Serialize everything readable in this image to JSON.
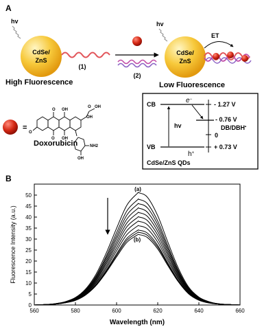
{
  "panel_a": {
    "label": "A",
    "left_qd": {
      "hv": "hv",
      "name_line1": "CdSe/",
      "name_line2": "ZnS",
      "strand_number": "(1)",
      "caption": "High Fluorescence"
    },
    "step2_number": "(2)",
    "right_qd": {
      "hv": "hv",
      "name_line1": "CdSe/",
      "name_line2": "ZnS",
      "et": "ET",
      "caption": "Low Fluorescence"
    },
    "legend": {
      "equals": "=",
      "compound": "Doxorubicin"
    },
    "structure_labels": [
      "O",
      "OH",
      "OH",
      "O",
      "OH",
      "O",
      "OH",
      "OH",
      "NH2",
      "O"
    ],
    "energy": {
      "cb": "CB",
      "vb": "VB",
      "electron": "e",
      "hole": "h",
      "hv": "hv",
      "cb_potential": "- 1.27 V",
      "db_potential": "- 0.76 V",
      "db_label": "DB/DBH",
      "zero": "0",
      "vb_potential": "+ 0.73 V",
      "box_label": "CdSe/ZnS QDs"
    }
  },
  "panel_b": {
    "label": "B",
    "curve_a_label": "(a)",
    "curve_b_label": "(b)"
  },
  "chart_data": {
    "type": "line",
    "xlabel": "Wavelength (nm)",
    "ylabel": "Fluorescence Intensity (a.u.)",
    "xlim": [
      560,
      660
    ],
    "ylim": [
      0,
      55
    ],
    "xticks": [
      560,
      580,
      600,
      620,
      640,
      660
    ],
    "yticks": [
      0,
      5,
      10,
      15,
      20,
      25,
      30,
      35,
      40,
      45,
      50
    ],
    "peak_wavelength": 611,
    "x": [
      560,
      565,
      570,
      575,
      580,
      585,
      590,
      595,
      600,
      605,
      610,
      611,
      615,
      620,
      625,
      630,
      635,
      640,
      645,
      650,
      655,
      660
    ],
    "series": [
      {
        "values": [
          0,
          0.2,
          0.6,
          1.5,
          3.4,
          7.3,
          14,
          23.7,
          34.9,
          45.4,
          50.7,
          51,
          49,
          40.6,
          28.4,
          16.8,
          8.2,
          3.6,
          1.5,
          0.5,
          0.2,
          0
        ]
      },
      {
        "values": [
          0,
          0.2,
          0.6,
          1.4,
          3.2,
          6.9,
          13.2,
          22.3,
          32.9,
          42.8,
          47.7,
          48,
          46.1,
          38.2,
          26.7,
          15.8,
          7.7,
          3.4,
          1.4,
          0.5,
          0.2,
          0
        ]
      },
      {
        "values": [
          0,
          0.2,
          0.5,
          1.4,
          3.1,
          6.6,
          12.6,
          21.4,
          31.4,
          40.9,
          45.7,
          46,
          44.2,
          36.6,
          25.6,
          15.2,
          7.4,
          3.3,
          1.3,
          0.5,
          0.2,
          0
        ]
      },
      {
        "values": [
          0,
          0.2,
          0.5,
          1.3,
          2.9,
          6.3,
          12.1,
          20.4,
          30.1,
          39.1,
          43.7,
          44,
          42.2,
          35,
          24.5,
          14.5,
          7.1,
          3.1,
          1.3,
          0.4,
          0.2,
          0
        ]
      },
      {
        "values": [
          0,
          0.2,
          0.5,
          1.3,
          2.8,
          6,
          11.5,
          19.5,
          28.7,
          37.3,
          41.7,
          42,
          40.3,
          33.4,
          23.4,
          13.8,
          6.8,
          3,
          1.2,
          0.4,
          0.2,
          0
        ]
      },
      {
        "values": [
          0,
          0.2,
          0.5,
          1.2,
          2.7,
          5.7,
          11,
          18.6,
          27.4,
          35.6,
          39.7,
          40,
          38.4,
          31.8,
          22.3,
          13.2,
          6.4,
          2.8,
          1.2,
          0.4,
          0.2,
          0
        ]
      },
      {
        "values": [
          0,
          0.2,
          0.5,
          1.1,
          2.5,
          5.4,
          10.4,
          17.6,
          26,
          33.8,
          37.8,
          38,
          36.5,
          30.2,
          21.1,
          12.5,
          6.1,
          2.7,
          1.1,
          0.4,
          0.2,
          0
        ]
      },
      {
        "values": [
          0,
          0.2,
          0.4,
          1.1,
          2.4,
          5.2,
          9.9,
          16.7,
          24.7,
          32,
          35.8,
          36,
          34.6,
          28.6,
          20,
          11.9,
          5.8,
          2.5,
          1,
          0.4,
          0.2,
          0
        ]
      },
      {
        "values": [
          0,
          0.2,
          0.4,
          1,
          2.3,
          4.9,
          9.3,
          15.8,
          23.3,
          30.3,
          33.8,
          34,
          32.7,
          27.1,
          18.9,
          11.2,
          5.5,
          2.4,
          1,
          0.4,
          0.2,
          0
        ]
      },
      {
        "values": [
          0,
          0.2,
          0.4,
          1,
          2.2,
          4.7,
          9,
          15.3,
          22.6,
          29.4,
          32.8,
          33,
          31.7,
          26.3,
          18.4,
          10.9,
          5.3,
          2.3,
          1,
          0.4,
          0.2,
          0
        ]
      },
      {
        "values": [
          0,
          0.2,
          0.4,
          1,
          2.1,
          4.6,
          8.8,
          14.9,
          21.9,
          28.5,
          31.8,
          32,
          30.7,
          25.5,
          17.8,
          10.6,
          5.1,
          2.2,
          0.9,
          0.4,
          0.2,
          0
        ]
      }
    ]
  }
}
